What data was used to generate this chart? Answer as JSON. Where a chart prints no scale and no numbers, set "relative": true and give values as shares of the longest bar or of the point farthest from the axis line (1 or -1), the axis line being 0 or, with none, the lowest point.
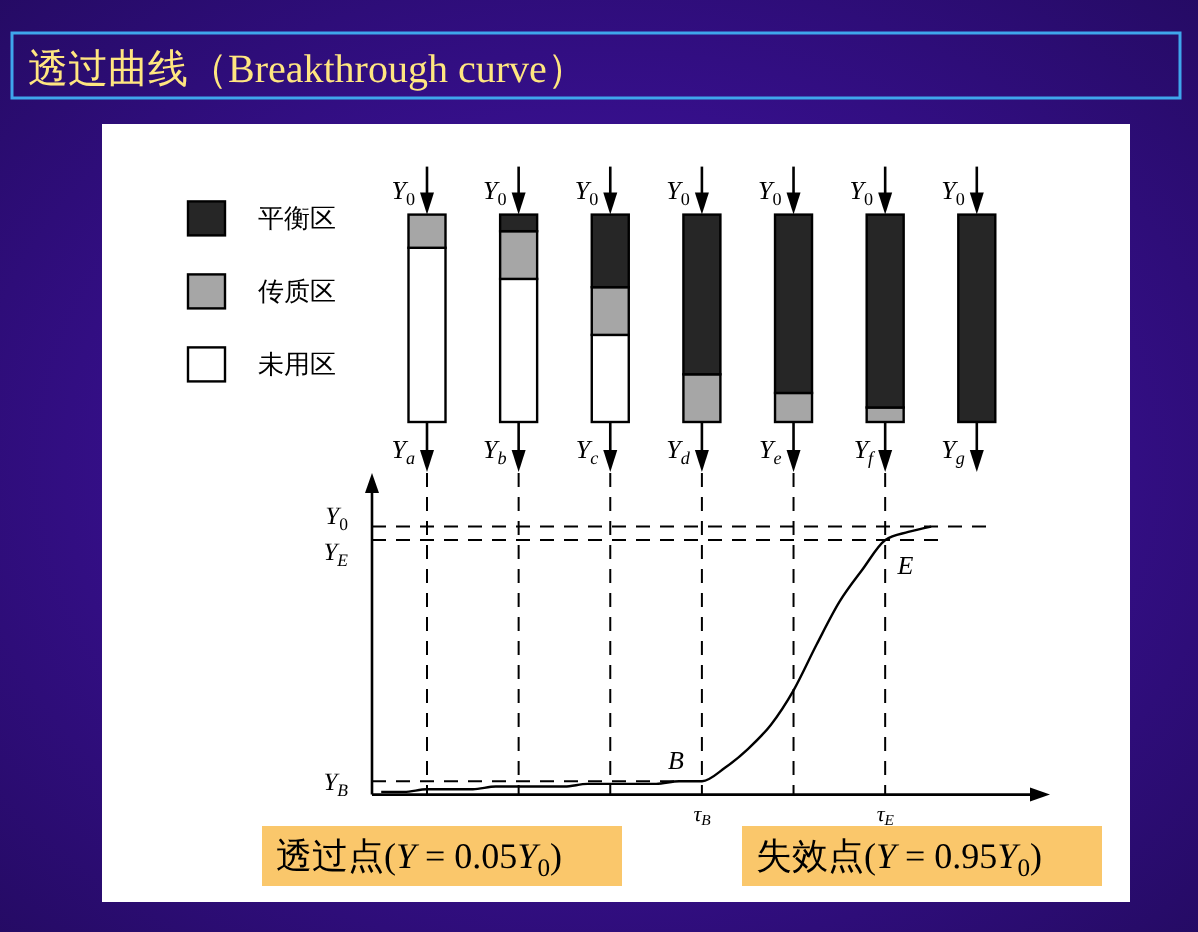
{
  "chart_data": [
    {
      "type": "bar",
      "title": "透过曲线（Breakthrough curve）",
      "categories": [
        "Y$_{a}$",
        "Y$_{b}$",
        "Y$_{c}$",
        "Y$_{d}$",
        "Y$_{e}$",
        "Y$_{f}$",
        "Y$_{g}$"
      ],
      "stacked": true,
      "relative": true,
      "legend": "left",
      "series": [
        {
          "name": "未用区",
          "color": "#ffffff",
          "values": [
            0.84,
            0.69,
            0.42,
            0,
            0,
            0,
            0
          ]
        },
        {
          "name": "传质区",
          "color": "#a6a6a6",
          "values": [
            0.16,
            0.23,
            0.23,
            0.23,
            0.14,
            0.07,
            0
          ]
        },
        {
          "name": "平衡区",
          "color": "#262626",
          "values": [
            0,
            0.08,
            0.35,
            0.77,
            0.86,
            0.93,
            1
          ]
        }
      ],
      "annotations": [
        {
          "text": "Y$_{0}$",
          "x": "Y$_{a}$",
          "y": 1
        },
        {
          "text": "Y$_{0}$",
          "x": "Y$_{b}$",
          "y": 1
        },
        {
          "text": "Y$_{0}$",
          "x": "Y$_{c}$",
          "y": 1
        },
        {
          "text": "Y$_{0}$",
          "x": "Y$_{d}$",
          "y": 1
        },
        {
          "text": "Y$_{0}$",
          "x": "Y$_{e}$",
          "y": 1
        },
        {
          "text": "Y$_{0}$",
          "x": "Y$_{f}$",
          "y": 1
        },
        {
          "text": "Y$_{0}$",
          "x": "Y$_{g}$",
          "y": 1
        }
      ]
    },
    {
      "type": "line",
      "relative": true,
      "categories": [
        null,
        null,
        null,
        null,
        null,
        null,
        null,
        null,
        null,
        null,
        null,
        null,
        null,
        null,
        "τ$_{B}$",
        null,
        null,
        null,
        null,
        null,
        null,
        null,
        "τ$_{E}$",
        null,
        null
      ],
      "series": [
        {
          "color": "#000000",
          "values": [
            0.01,
            0.01,
            0.02,
            0.02,
            0.02,
            0.03,
            0.03,
            0.03,
            0.03,
            0.04,
            0.04,
            0.04,
            0.04,
            0.05,
            0.05,
            0.1,
            0.17,
            0.26,
            0.39,
            0.56,
            0.72,
            0.84,
            0.95,
            0.98,
            1
          ]
        }
      ],
      "ref_lines": [
        {
          "axis": "y",
          "value": 1,
          "label": "Y$_{0}$",
          "line_style": "dashed"
        },
        {
          "axis": "y",
          "value": 0.95,
          "label": "Y$_{E}$",
          "line_style": "dashed"
        },
        {
          "axis": "y",
          "value": 0.05,
          "label": "Y$_{B}$",
          "line_style": "dashed"
        }
      ],
      "annotations": [
        {
          "text": "B",
          "x": "τ$_{B}$",
          "y": 0.05
        },
        {
          "text": "E",
          "x": "τ$_{E}$",
          "y": 0.95
        },
        "透过点(Y = 0.05Y$_{0}$)",
        "失效点(Y = 0.95Y$_{0}$)"
      ]
    }
  ]
}
